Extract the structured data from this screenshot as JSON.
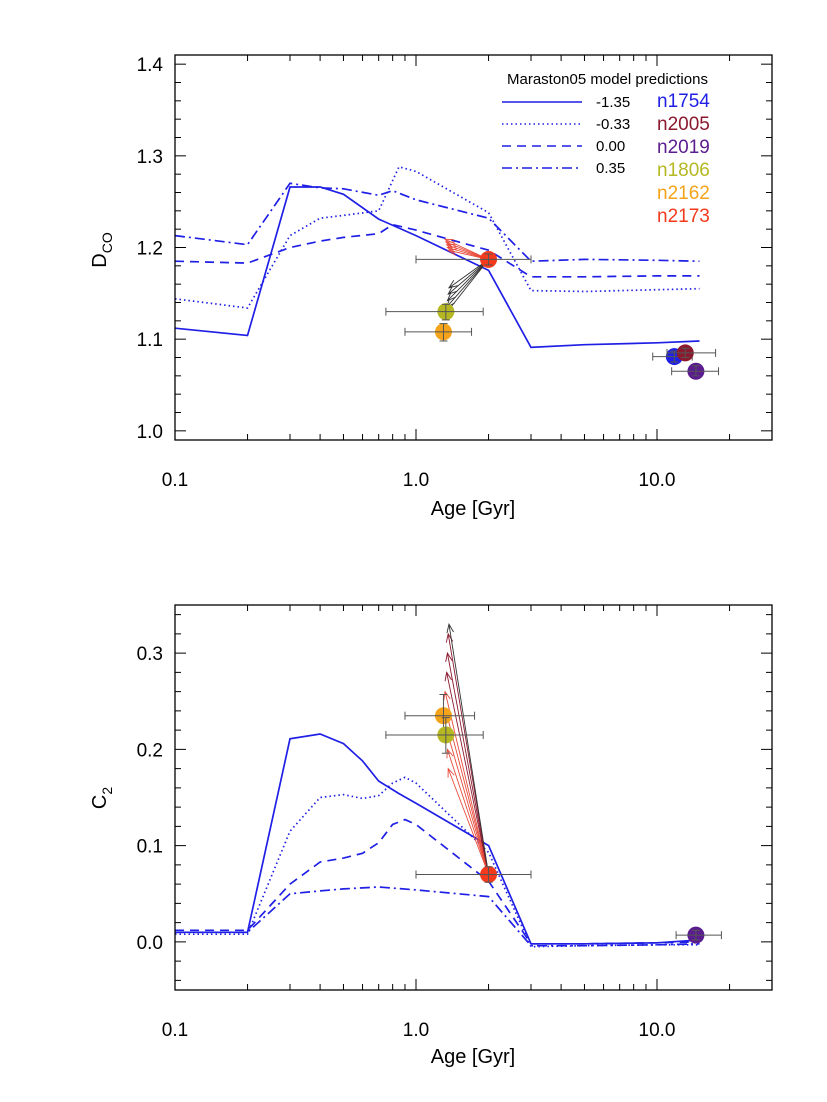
{
  "chart_data": [
    {
      "type": "line",
      "xscale": "log",
      "xlim": [
        0.1,
        30
      ],
      "ylim": [
        0.99,
        1.41
      ],
      "xlabel": "Age [Gyr]",
      "ylabel": "D",
      "ylabel_sub": "CO",
      "xticks": [
        0.1,
        1.0,
        10.0
      ],
      "xtick_labels": [
        "0.1",
        "1.0",
        "10.0"
      ],
      "yticks": [
        1.0,
        1.1,
        1.2,
        1.3,
        1.4
      ],
      "ytick_labels": [
        "1.0",
        "1.1",
        "1.2",
        "1.3",
        "1.4"
      ],
      "legend_title": "Maraston05 model predictions",
      "series": [
        {
          "name": "-1.35",
          "style": "solid",
          "x": [
            0.1,
            0.2,
            0.3,
            0.4,
            0.5,
            0.7,
            1.0,
            2.0,
            3.0,
            5.0,
            10.0,
            15.0
          ],
          "y": [
            1.112,
            1.104,
            1.266,
            1.266,
            1.258,
            1.231,
            1.213,
            1.175,
            1.091,
            1.094,
            1.096,
            1.098
          ]
        },
        {
          "name": "-0.33",
          "style": "dotted",
          "x": [
            0.1,
            0.2,
            0.3,
            0.4,
            0.5,
            0.7,
            0.85,
            1.0,
            2.0,
            3.0,
            5.0,
            10.0,
            15.0
          ],
          "y": [
            1.144,
            1.134,
            1.213,
            1.232,
            1.235,
            1.24,
            1.288,
            1.283,
            1.238,
            1.153,
            1.152,
            1.154,
            1.155
          ]
        },
        {
          "name": "0.00",
          "style": "dashed",
          "x": [
            0.1,
            0.2,
            0.3,
            0.4,
            0.5,
            0.7,
            0.8,
            1.0,
            2.0,
            3.0,
            5.0,
            10.0,
            15.0
          ],
          "y": [
            1.185,
            1.183,
            1.2,
            1.207,
            1.211,
            1.215,
            1.225,
            1.219,
            1.197,
            1.168,
            1.168,
            1.169,
            1.169
          ]
        },
        {
          "name": "0.35",
          "style": "dashdot",
          "x": [
            0.1,
            0.2,
            0.3,
            0.4,
            0.5,
            0.7,
            0.8,
            1.0,
            2.0,
            3.0,
            5.0,
            10.0,
            15.0
          ],
          "y": [
            1.213,
            1.203,
            1.27,
            1.265,
            1.264,
            1.257,
            1.262,
            1.252,
            1.232,
            1.185,
            1.187,
            1.186,
            1.185
          ]
        }
      ],
      "galaxies": [
        {
          "name": "n1754",
          "color": "#1f1fe6",
          "age": 11.8,
          "value": 1.081,
          "xerr": [
            9.6,
            14.0
          ],
          "yerr": [
            1.075,
            1.087
          ]
        },
        {
          "name": "n2005",
          "color": "#8b1a2e",
          "age": 13.1,
          "value": 1.085,
          "xerr": [
            11.0,
            17.5
          ],
          "yerr": [
            1.08,
            1.09
          ]
        },
        {
          "name": "n2019",
          "color": "#5a1c8f",
          "age": 14.5,
          "value": 1.065,
          "xerr": [
            11.5,
            18.0
          ],
          "yerr": [
            1.06,
            1.071
          ]
        },
        {
          "name": "n1806",
          "color": "#b5b822",
          "age": 1.33,
          "value": 1.13,
          "xerr": [
            0.75,
            1.9
          ],
          "yerr": [
            1.121,
            1.138
          ]
        },
        {
          "name": "n2162",
          "color": "#f5a31a",
          "age": 1.3,
          "value": 1.108,
          "xerr": [
            0.9,
            1.7
          ],
          "yerr": [
            1.098,
            1.117
          ]
        },
        {
          "name": "n2173",
          "color": "#f33a1c",
          "age": 2.0,
          "value": 1.187,
          "xerr": [
            1.0,
            3.0
          ],
          "yerr": [
            1.181,
            1.193
          ]
        }
      ],
      "arrows_from": {
        "age": 2.0,
        "value": 1.187
      },
      "arrows_red_to": [
        [
          1.32,
          1.209
        ],
        [
          1.33,
          1.206
        ],
        [
          1.34,
          1.203
        ],
        [
          1.35,
          1.2
        ],
        [
          1.36,
          1.197
        ]
      ],
      "arrows_black_to": [
        [
          1.33,
          1.128
        ],
        [
          1.34,
          1.135
        ],
        [
          1.35,
          1.142
        ],
        [
          1.36,
          1.149
        ],
        [
          1.37,
          1.156
        ]
      ]
    },
    {
      "type": "line",
      "xscale": "log",
      "xlim": [
        0.1,
        30
      ],
      "ylim": [
        -0.05,
        0.35
      ],
      "xlabel": "Age [Gyr]",
      "ylabel": "C",
      "ylabel_sub": "2",
      "xticks": [
        0.1,
        1.0,
        10.0
      ],
      "xtick_labels": [
        "0.1",
        "1.0",
        "10.0"
      ],
      "yticks": [
        0.0,
        0.1,
        0.2,
        0.3
      ],
      "ytick_labels": [
        "0.0",
        "0.1",
        "0.2",
        "0.3"
      ],
      "series": [
        {
          "name": "-1.35",
          "style": "solid",
          "x": [
            0.1,
            0.2,
            0.3,
            0.4,
            0.5,
            0.6,
            0.7,
            0.85,
            1.0,
            2.0,
            3.0,
            5.0,
            10.0,
            15.0
          ],
          "y": [
            0.01,
            0.01,
            0.211,
            0.216,
            0.206,
            0.188,
            0.167,
            0.154,
            0.144,
            0.1,
            -0.002,
            -0.002,
            -0.001,
            0.002
          ]
        },
        {
          "name": "-0.33",
          "style": "dotted",
          "x": [
            0.1,
            0.2,
            0.3,
            0.4,
            0.5,
            0.6,
            0.7,
            0.8,
            0.9,
            1.0,
            2.0,
            3.0,
            5.0,
            10.0,
            15.0
          ],
          "y": [
            0.008,
            0.008,
            0.115,
            0.15,
            0.153,
            0.149,
            0.152,
            0.165,
            0.171,
            0.165,
            0.093,
            -0.005,
            -0.004,
            -0.003,
            -0.003
          ]
        },
        {
          "name": "0.00",
          "style": "dashed",
          "x": [
            0.1,
            0.2,
            0.3,
            0.4,
            0.5,
            0.6,
            0.7,
            0.8,
            0.9,
            1.0,
            2.0,
            3.0,
            5.0,
            10.0,
            15.0
          ],
          "y": [
            0.012,
            0.012,
            0.06,
            0.083,
            0.087,
            0.092,
            0.103,
            0.122,
            0.127,
            0.122,
            0.063,
            -0.002,
            -0.002,
            -0.001,
            0.0
          ]
        },
        {
          "name": "0.35",
          "style": "dashdot",
          "x": [
            0.1,
            0.2,
            0.3,
            0.4,
            0.5,
            0.7,
            1.0,
            2.0,
            3.0,
            5.0,
            10.0,
            15.0
          ],
          "y": [
            0.01,
            0.01,
            0.05,
            0.053,
            0.055,
            0.057,
            0.054,
            0.047,
            -0.004,
            -0.004,
            -0.003,
            -0.002
          ]
        }
      ],
      "galaxies": [
        {
          "name": "n2019",
          "color": "#5a1c8f",
          "age": 14.5,
          "value": 0.007,
          "xerr": [
            12.0,
            18.5
          ],
          "yerr": [
            0.002,
            0.012
          ]
        },
        {
          "name": "n2162",
          "color": "#f5a31a",
          "age": 1.3,
          "value": 0.235,
          "xerr": [
            0.9,
            1.75
          ],
          "yerr": [
            0.215,
            0.257
          ]
        },
        {
          "name": "n1806",
          "color": "#b5b822",
          "age": 1.33,
          "value": 0.215,
          "xerr": [
            0.75,
            1.9
          ],
          "yerr": [
            0.196,
            0.233
          ]
        },
        {
          "name": "n2173",
          "color": "#f33a1c",
          "age": 2.0,
          "value": 0.07,
          "xerr": [
            1.0,
            3.0
          ],
          "yerr": [
            0.062,
            0.078
          ]
        }
      ],
      "arrows_from": {
        "age": 2.0,
        "value": 0.07
      },
      "arrows_red_to": [
        [
          1.36,
          0.18
        ],
        [
          1.35,
          0.2
        ],
        [
          1.34,
          0.22
        ],
        [
          1.33,
          0.24
        ],
        [
          1.32,
          0.26
        ]
      ],
      "arrows_dark_to": [
        [
          1.34,
          0.28
        ],
        [
          1.35,
          0.3
        ],
        [
          1.36,
          0.32
        ]
      ],
      "arrows_black_to": [
        [
          1.37,
          0.33
        ]
      ]
    }
  ]
}
